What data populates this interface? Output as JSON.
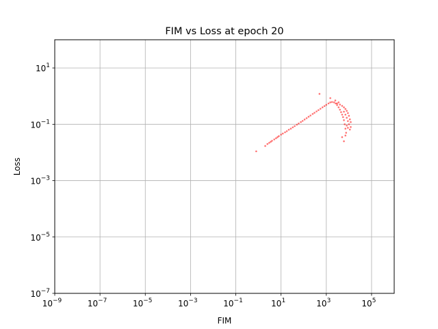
{
  "chart_data": {
    "type": "scatter",
    "title": "FIM vs Loss at epoch 20",
    "xlabel": "FIM",
    "ylabel": "Loss",
    "xscale": "log",
    "yscale": "log",
    "xlim": [
      1e-09,
      1000000.0
    ],
    "ylim": [
      1e-07,
      100
    ],
    "grid": true,
    "color": "#ff0000",
    "x_ticks": [
      {
        "base": "10",
        "exp": "−9",
        "value": 1e-09
      },
      {
        "base": "10",
        "exp": "−7",
        "value": 1e-07
      },
      {
        "base": "10",
        "exp": "−5",
        "value": 1e-05
      },
      {
        "base": "10",
        "exp": "−3",
        "value": 0.001
      },
      {
        "base": "10",
        "exp": "−1",
        "value": 0.1
      },
      {
        "base": "10",
        "exp": "1",
        "value": 10
      },
      {
        "base": "10",
        "exp": "3",
        "value": 1000
      },
      {
        "base": "10",
        "exp": "5",
        "value": 100000
      }
    ],
    "y_ticks": [
      {
        "base": "10",
        "exp": "−7",
        "value": 1e-07
      },
      {
        "base": "10",
        "exp": "−5",
        "value": 1e-05
      },
      {
        "base": "10",
        "exp": "−3",
        "value": 0.001
      },
      {
        "base": "10",
        "exp": "−1",
        "value": 0.1
      },
      {
        "base": "10",
        "exp": "1",
        "value": 10
      }
    ],
    "points": [
      {
        "x": 0.8,
        "y": 0.011
      },
      {
        "x": 2.0,
        "y": 0.017
      },
      {
        "x": 2.5,
        "y": 0.02
      },
      {
        "x": 3.0,
        "y": 0.022
      },
      {
        "x": 3.5,
        "y": 0.024
      },
      {
        "x": 4.0,
        "y": 0.026
      },
      {
        "x": 5.0,
        "y": 0.029
      },
      {
        "x": 6.0,
        "y": 0.032
      },
      {
        "x": 7.0,
        "y": 0.035
      },
      {
        "x": 8.0,
        "y": 0.038
      },
      {
        "x": 10.0,
        "y": 0.043
      },
      {
        "x": 12.0,
        "y": 0.047
      },
      {
        "x": 15.0,
        "y": 0.052
      },
      {
        "x": 18.0,
        "y": 0.057
      },
      {
        "x": 22.0,
        "y": 0.064
      },
      {
        "x": 27.0,
        "y": 0.07
      },
      {
        "x": 33.0,
        "y": 0.078
      },
      {
        "x": 40.0,
        "y": 0.086
      },
      {
        "x": 50.0,
        "y": 0.097
      },
      {
        "x": 60.0,
        "y": 0.107
      },
      {
        "x": 75.0,
        "y": 0.12
      },
      {
        "x": 90.0,
        "y": 0.132
      },
      {
        "x": 110.0,
        "y": 0.148
      },
      {
        "x": 135.0,
        "y": 0.165
      },
      {
        "x": 165.0,
        "y": 0.185
      },
      {
        "x": 200.0,
        "y": 0.205
      },
      {
        "x": 250.0,
        "y": 0.232
      },
      {
        "x": 300.0,
        "y": 0.256
      },
      {
        "x": 370.0,
        "y": 0.287
      },
      {
        "x": 450.0,
        "y": 0.319
      },
      {
        "x": 550.0,
        "y": 0.356
      },
      {
        "x": 680.0,
        "y": 0.4
      },
      {
        "x": 830.0,
        "y": 0.444
      },
      {
        "x": 1000.0,
        "y": 0.49
      },
      {
        "x": 1250.0,
        "y": 0.55
      },
      {
        "x": 1500.0,
        "y": 0.6
      },
      {
        "x": 1800.0,
        "y": 0.62
      },
      {
        "x": 2200.0,
        "y": 0.6
      },
      {
        "x": 2600.0,
        "y": 0.55
      },
      {
        "x": 3000.0,
        "y": 0.48
      },
      {
        "x": 3500.0,
        "y": 0.4
      },
      {
        "x": 4000.0,
        "y": 0.33
      },
      {
        "x": 4500.0,
        "y": 0.27
      },
      {
        "x": 5000.0,
        "y": 0.22
      },
      {
        "x": 5500.0,
        "y": 0.18
      },
      {
        "x": 6000.0,
        "y": 0.14
      },
      {
        "x": 6500.0,
        "y": 0.1
      },
      {
        "x": 7000.0,
        "y": 0.07
      },
      {
        "x": 7500.0,
        "y": 0.05
      },
      {
        "x": 7000.0,
        "y": 0.04
      },
      {
        "x": 5000.0,
        "y": 0.035
      },
      {
        "x": 6000.0,
        "y": 0.025
      },
      {
        "x": 3000.0,
        "y": 0.55
      },
      {
        "x": 4000.0,
        "y": 0.5
      },
      {
        "x": 5000.0,
        "y": 0.45
      },
      {
        "x": 6000.0,
        "y": 0.4
      },
      {
        "x": 7000.0,
        "y": 0.35
      },
      {
        "x": 8000.0,
        "y": 0.3
      },
      {
        "x": 9000.0,
        "y": 0.25
      },
      {
        "x": 10000.0,
        "y": 0.2
      },
      {
        "x": 11000.0,
        "y": 0.15
      },
      {
        "x": 12000.0,
        "y": 0.12
      },
      {
        "x": 12000.0,
        "y": 0.08
      },
      {
        "x": 11000.0,
        "y": 0.065
      },
      {
        "x": 9000.0,
        "y": 0.075
      },
      {
        "x": 8000.0,
        "y": 0.09
      },
      {
        "x": 10000.0,
        "y": 0.1
      },
      {
        "x": 9000.0,
        "y": 0.13
      },
      {
        "x": 8000.0,
        "y": 0.17
      },
      {
        "x": 7000.0,
        "y": 0.22
      },
      {
        "x": 6000.0,
        "y": 0.28
      },
      {
        "x": 500.0,
        "y": 1.2
      },
      {
        "x": 1500.0,
        "y": 0.85
      },
      {
        "x": 2500.0,
        "y": 0.7
      },
      {
        "x": 3500.0,
        "y": 0.6
      }
    ]
  }
}
